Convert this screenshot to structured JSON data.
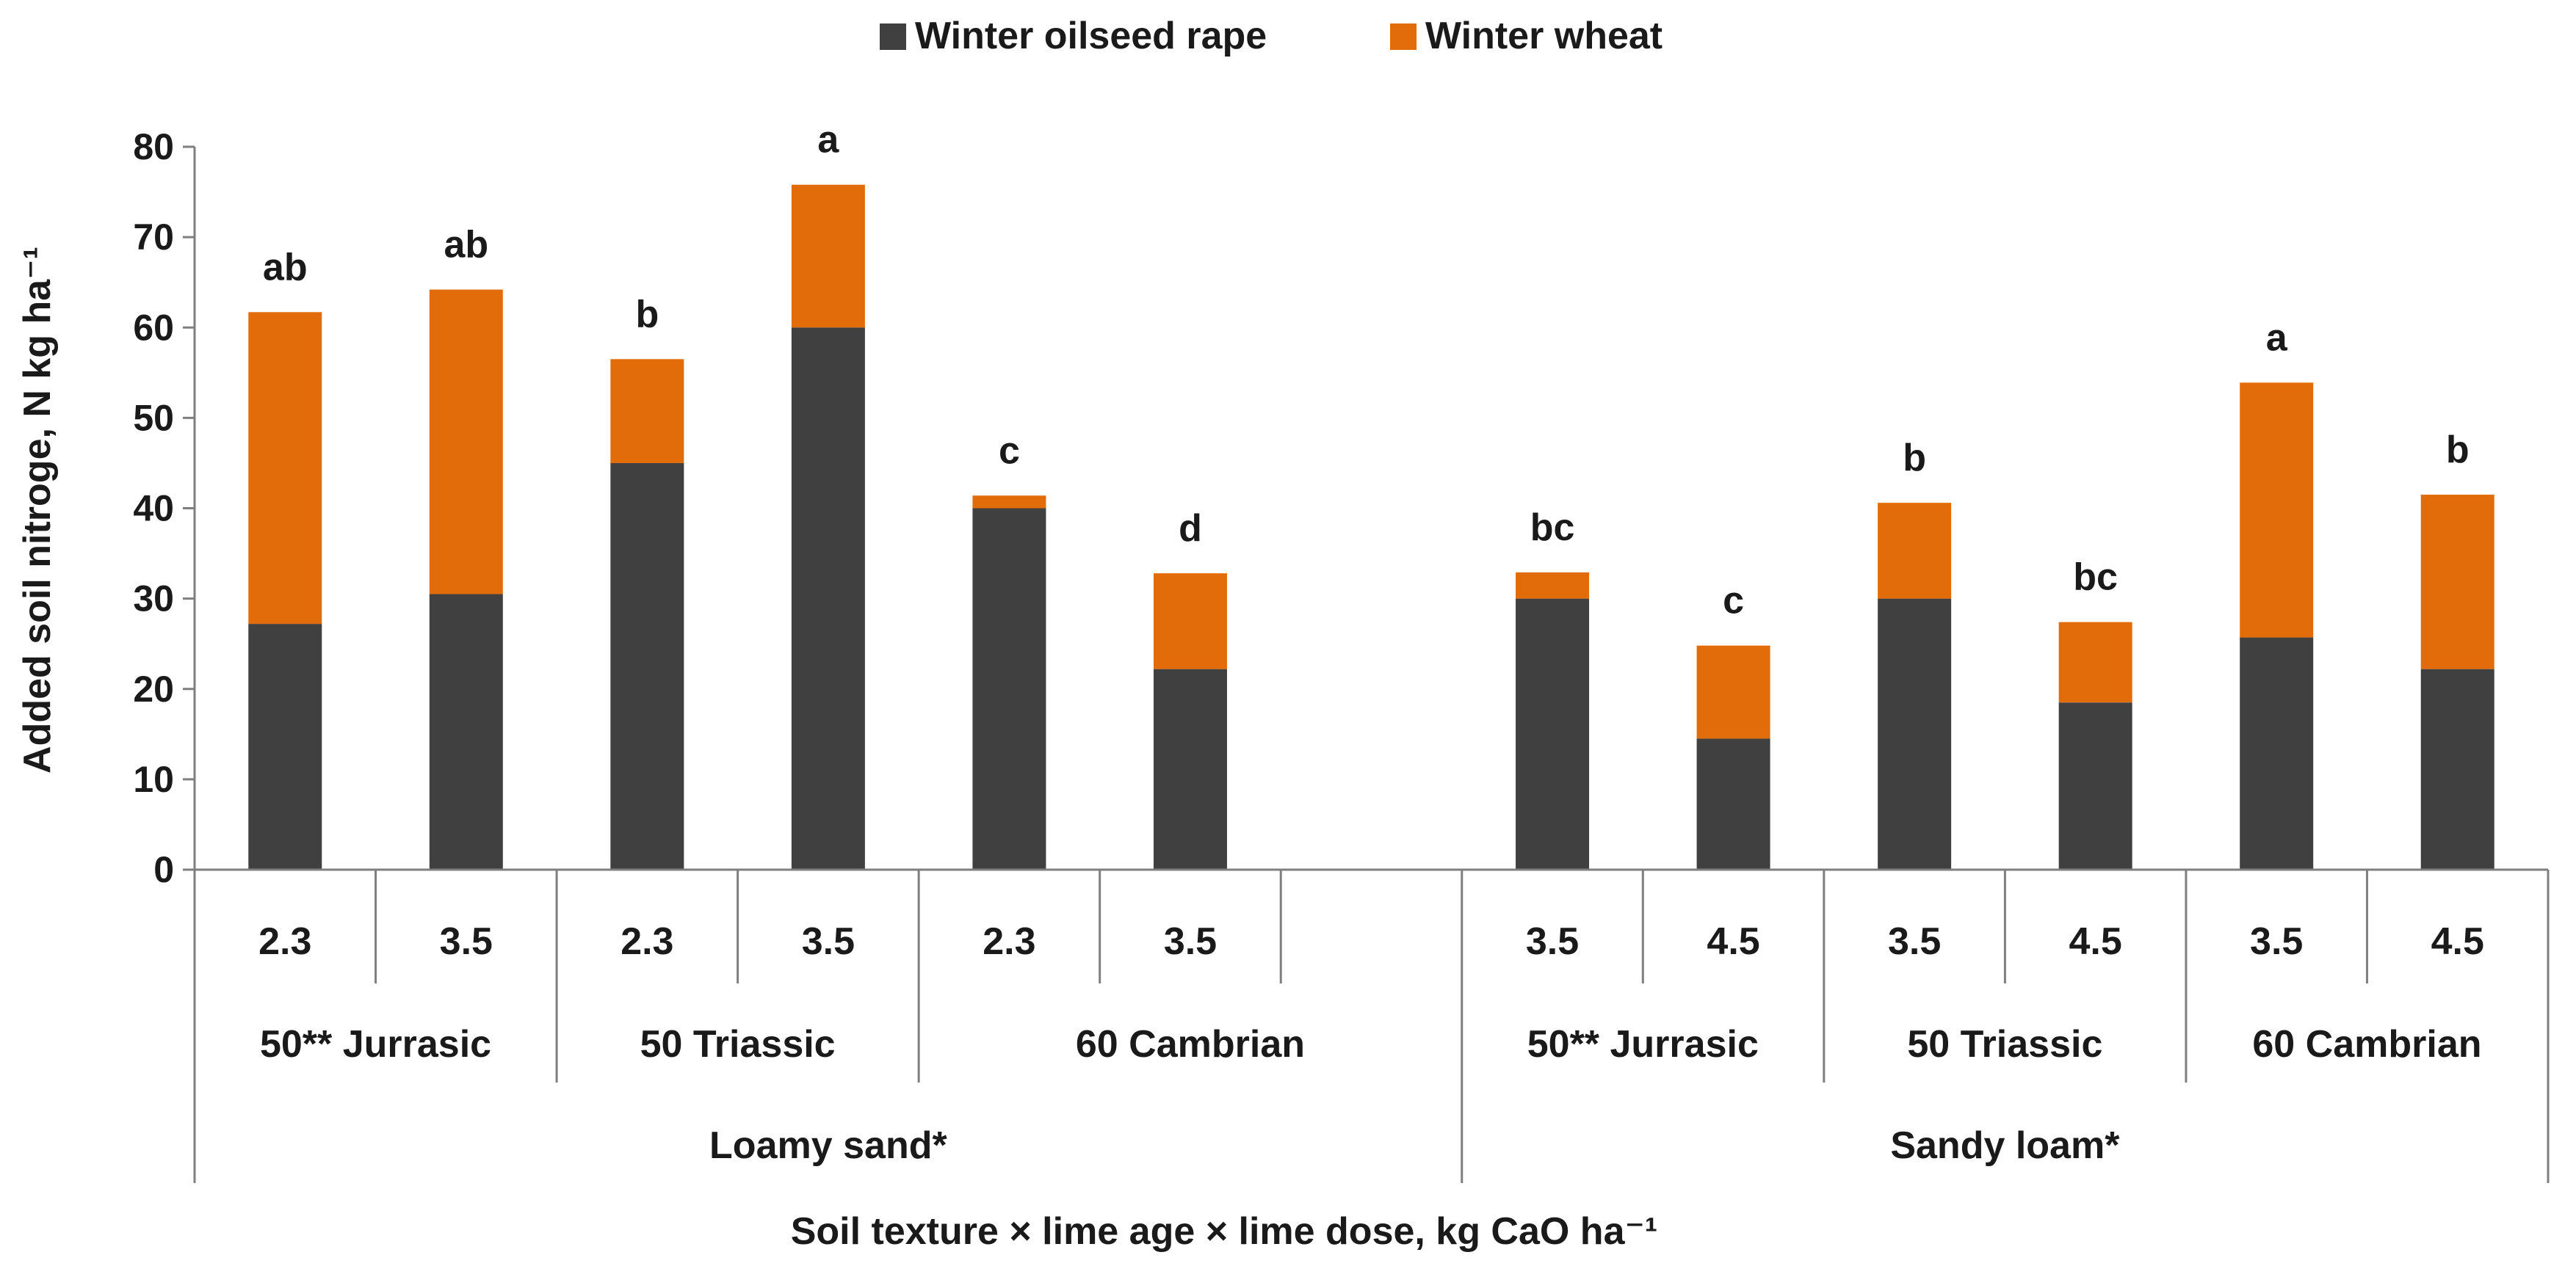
{
  "chart_data": {
    "type": "bar",
    "stacked": true,
    "title": "",
    "xlabel": "Soil texture × lime age × lime dose, kg CaO ha⁻¹",
    "ylabel": "Added soil nitroge,  N kg ha⁻¹",
    "ylim": [
      0,
      80
    ],
    "yticks": [
      0,
      10,
      20,
      30,
      40,
      50,
      60,
      70,
      80
    ],
    "grid": false,
    "legend_position": "top-center",
    "colors": {
      "Winter oilseed rape": "#404040",
      "Winter wheat": "#e36c0a"
    },
    "series": [
      {
        "name": "Winter oilseed rape",
        "color": "#404040",
        "values": [
          27.2,
          30.5,
          45.0,
          60.0,
          40.0,
          22.2,
          null,
          30.0,
          14.5,
          30.0,
          18.5,
          25.7,
          22.2
        ]
      },
      {
        "name": "Winter wheat",
        "color": "#e36c0a",
        "values": [
          34.5,
          33.7,
          11.5,
          15.8,
          1.4,
          10.6,
          null,
          2.9,
          10.3,
          10.6,
          8.9,
          28.2,
          19.3
        ]
      }
    ],
    "letters": [
      "ab",
      "ab",
      "b",
      "a",
      "c",
      "d",
      null,
      "bc",
      "c",
      "b",
      "bc",
      "a",
      "b"
    ],
    "categories": [
      "2.3",
      "3.5",
      "2.3",
      "3.5",
      "2.3",
      "3.5",
      "",
      "3.5",
      "4.5",
      "3.5",
      "4.5",
      "3.5",
      "4.5"
    ],
    "group_labels": [
      {
        "label": "50** Jurrasic",
        "start": 0,
        "span": 2
      },
      {
        "label": "50 Triassic",
        "start": 2,
        "span": 2
      },
      {
        "label": "60 Cambrian",
        "start": 4,
        "span": 3
      },
      {
        "label": "50** Jurrasic",
        "start": 7,
        "span": 2
      },
      {
        "label": "50 Triassic",
        "start": 9,
        "span": 2
      },
      {
        "label": "60 Cambrian",
        "start": 11,
        "span": 2
      }
    ],
    "supergroup_labels": [
      {
        "label": "Loamy sand*",
        "start": 0,
        "span": 7
      },
      {
        "label": "Sandy loam*",
        "start": 7,
        "span": 6
      }
    ]
  }
}
